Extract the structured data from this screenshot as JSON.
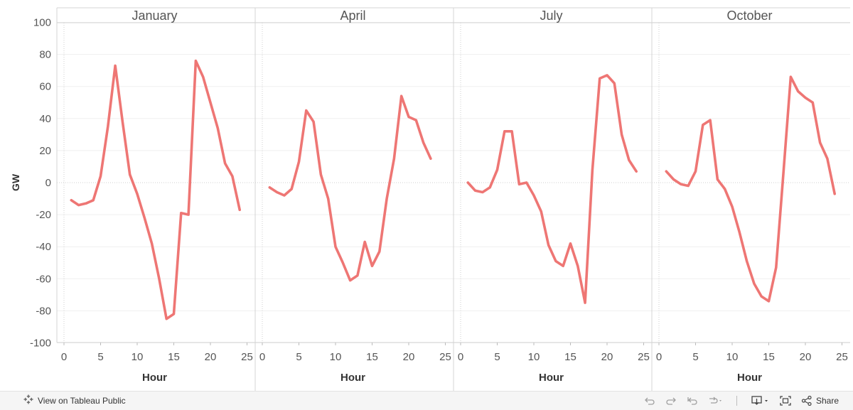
{
  "chart_data": {
    "type": "line",
    "ylabel": "GW",
    "xlabel": "Hour",
    "ylim": [
      -105,
      105
    ],
    "xlim": [
      -0.5,
      25.5
    ],
    "yticks": [
      100,
      80,
      60,
      40,
      20,
      0,
      -20,
      -40,
      -60,
      -80,
      -100
    ],
    "xticks": [
      0,
      5,
      10,
      15,
      20,
      25
    ],
    "line_color": "#EE7674",
    "panels": [
      {
        "name": "January",
        "x": [
          1,
          2,
          3,
          4,
          5,
          6,
          7,
          8,
          9,
          10,
          11,
          12,
          13,
          14,
          15,
          16,
          17,
          18,
          19,
          20,
          21,
          22,
          23,
          24
        ],
        "y": [
          -11,
          -14,
          -13,
          -11,
          4,
          35,
          73,
          38,
          5,
          -7,
          -22,
          -38,
          -60,
          -85,
          -82,
          -19,
          -20,
          76,
          66,
          50,
          34,
          12,
          4,
          -17
        ]
      },
      {
        "name": "April",
        "x": [
          1,
          2,
          3,
          4,
          5,
          6,
          7,
          8,
          9,
          10,
          11,
          12,
          13,
          14,
          15,
          16,
          17,
          18,
          19,
          20,
          21,
          22,
          23
        ],
        "y": [
          -3,
          -6,
          -8,
          -4,
          13,
          45,
          38,
          5,
          -10,
          -40,
          -50,
          -61,
          -58,
          -37,
          -52,
          -43,
          -10,
          15,
          54,
          41,
          39,
          25,
          15
        ]
      },
      {
        "name": "July",
        "x": [
          1,
          2,
          3,
          4,
          5,
          6,
          7,
          8,
          9,
          10,
          11,
          12,
          13,
          14,
          15,
          16,
          17,
          18,
          19,
          20,
          21,
          22,
          23,
          24
        ],
        "y": [
          0,
          -5,
          -6,
          -3,
          8,
          32,
          32,
          -1,
          0,
          -8,
          -18,
          -39,
          -49,
          -52,
          -38,
          -52,
          -75,
          8,
          65,
          67,
          62,
          30,
          14,
          7
        ]
      },
      {
        "name": "October",
        "x": [
          1,
          2,
          3,
          4,
          5,
          6,
          7,
          8,
          9,
          10,
          11,
          12,
          13,
          14,
          15,
          16,
          17,
          18,
          19,
          20,
          21,
          22,
          23,
          24
        ],
        "y": [
          7,
          2,
          -1,
          -2,
          7,
          36,
          39,
          2,
          -4,
          -15,
          -31,
          -49,
          -63,
          -71,
          -74,
          -53,
          6,
          66,
          57,
          53,
          50,
          25,
          15,
          -7
        ]
      }
    ]
  },
  "toolbar": {
    "view_label": "View on Tableau Public",
    "share_label": "Share"
  }
}
